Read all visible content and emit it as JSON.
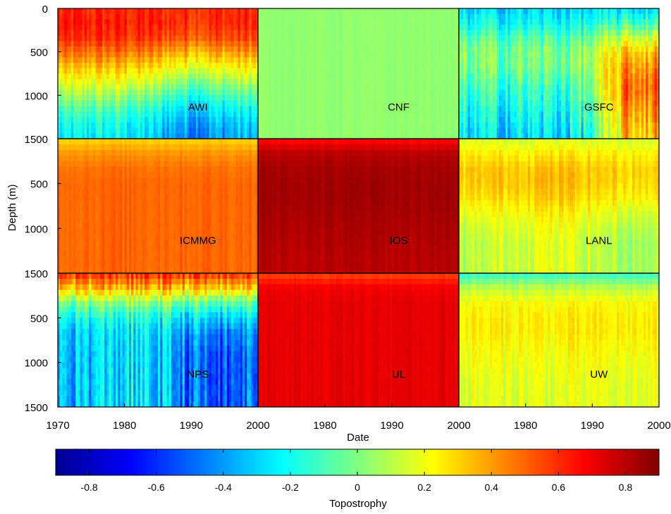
{
  "chart_data": {
    "type": "heatmap",
    "title": "",
    "xlabel": "Date",
    "ylabel": "Depth (m)",
    "x_range": [
      1970,
      2000
    ],
    "x_ticks": [
      1970,
      1980,
      1990,
      2000
    ],
    "y_range": [
      0,
      1500
    ],
    "y_reversed": true,
    "y_tick_labels": [
      [
        "0",
        "500",
        "1000"
      ],
      [
        "1500",
        "500",
        "1000"
      ],
      [
        "1500",
        "500",
        "1000",
        "1500"
      ]
    ],
    "x_tick_labels": [
      [
        "1970",
        "1980",
        "1990",
        "2000"
      ],
      [
        "1980",
        "1990",
        "2000"
      ],
      [
        "1980",
        "1990",
        "2000"
      ]
    ],
    "colorbar": {
      "label": "Topostrophy",
      "range": [
        -0.9,
        0.9
      ],
      "ticks": [
        "-0.8",
        "-0.6",
        "-0.4",
        "-0.2",
        "0",
        "0.2",
        "0.4",
        "0.6",
        "0.8"
      ],
      "colormap": "jet"
    },
    "panels": [
      {
        "name": "AWI",
        "profile": [
          0.6,
          0.62,
          0.58,
          0.45,
          0.3,
          0.15,
          0.0,
          -0.15,
          -0.25,
          -0.3
        ],
        "trend": [
          0.0,
          0.05,
          0.05,
          -0.05,
          -0.15,
          -0.1,
          -0.05
        ],
        "noise": 0.12
      },
      {
        "name": "CNF",
        "profile": [
          0.03,
          0.03,
          0.03,
          0.03,
          0.03,
          0.03,
          0.03,
          0.03,
          0.03,
          0.03
        ],
        "trend": [
          0,
          0,
          0,
          0,
          0,
          0,
          0
        ],
        "noise": 0.02
      },
      {
        "name": "GSFC",
        "profile": [
          -0.3,
          -0.2,
          -0.05,
          0.05,
          0.05,
          0.0,
          -0.05,
          -0.1,
          -0.15,
          -0.2
        ],
        "trend": [
          -0.1,
          -0.1,
          -0.1,
          -0.1,
          0.0,
          0.5,
          0.55
        ],
        "noise": 0.18
      },
      {
        "name": "ICMMG",
        "profile": [
          0.3,
          0.42,
          0.48,
          0.5,
          0.5,
          0.5,
          0.5,
          0.5,
          0.5,
          0.5
        ],
        "trend": [
          0,
          0,
          0,
          0,
          0,
          0,
          0
        ],
        "noise": 0.04
      },
      {
        "name": "IOS",
        "profile": [
          0.65,
          0.8,
          0.83,
          0.84,
          0.84,
          0.83,
          0.82,
          0.81,
          0.8,
          0.8
        ],
        "trend": [
          0,
          0,
          0,
          0,
          0,
          0,
          0
        ],
        "noise": 0.03
      },
      {
        "name": "LANL",
        "profile": [
          0.15,
          0.25,
          0.32,
          0.32,
          0.28,
          0.2,
          0.15,
          0.12,
          0.12,
          0.12
        ],
        "trend": [
          -0.05,
          0.0,
          0.05,
          0.05,
          0.0,
          -0.05,
          -0.05
        ],
        "noise": 0.08
      },
      {
        "name": "NPS",
        "profile": [
          0.6,
          0.35,
          0.0,
          -0.2,
          -0.3,
          -0.32,
          -0.33,
          -0.33,
          -0.33,
          -0.33
        ],
        "trend": [
          0.0,
          0.0,
          0.05,
          0.0,
          -0.15,
          -0.25,
          -0.1
        ],
        "noise": 0.2
      },
      {
        "name": "UL",
        "profile": [
          0.55,
          0.7,
          0.72,
          0.72,
          0.72,
          0.72,
          0.72,
          0.72,
          0.72,
          0.72
        ],
        "trend": [
          0,
          0,
          0,
          0,
          0,
          0,
          0
        ],
        "noise": 0.03
      },
      {
        "name": "UW",
        "profile": [
          -0.15,
          0.1,
          0.22,
          0.25,
          0.25,
          0.22,
          0.2,
          0.18,
          0.17,
          0.17
        ],
        "trend": [
          0,
          0,
          0,
          0,
          0,
          0,
          0
        ],
        "noise": 0.08
      }
    ]
  }
}
